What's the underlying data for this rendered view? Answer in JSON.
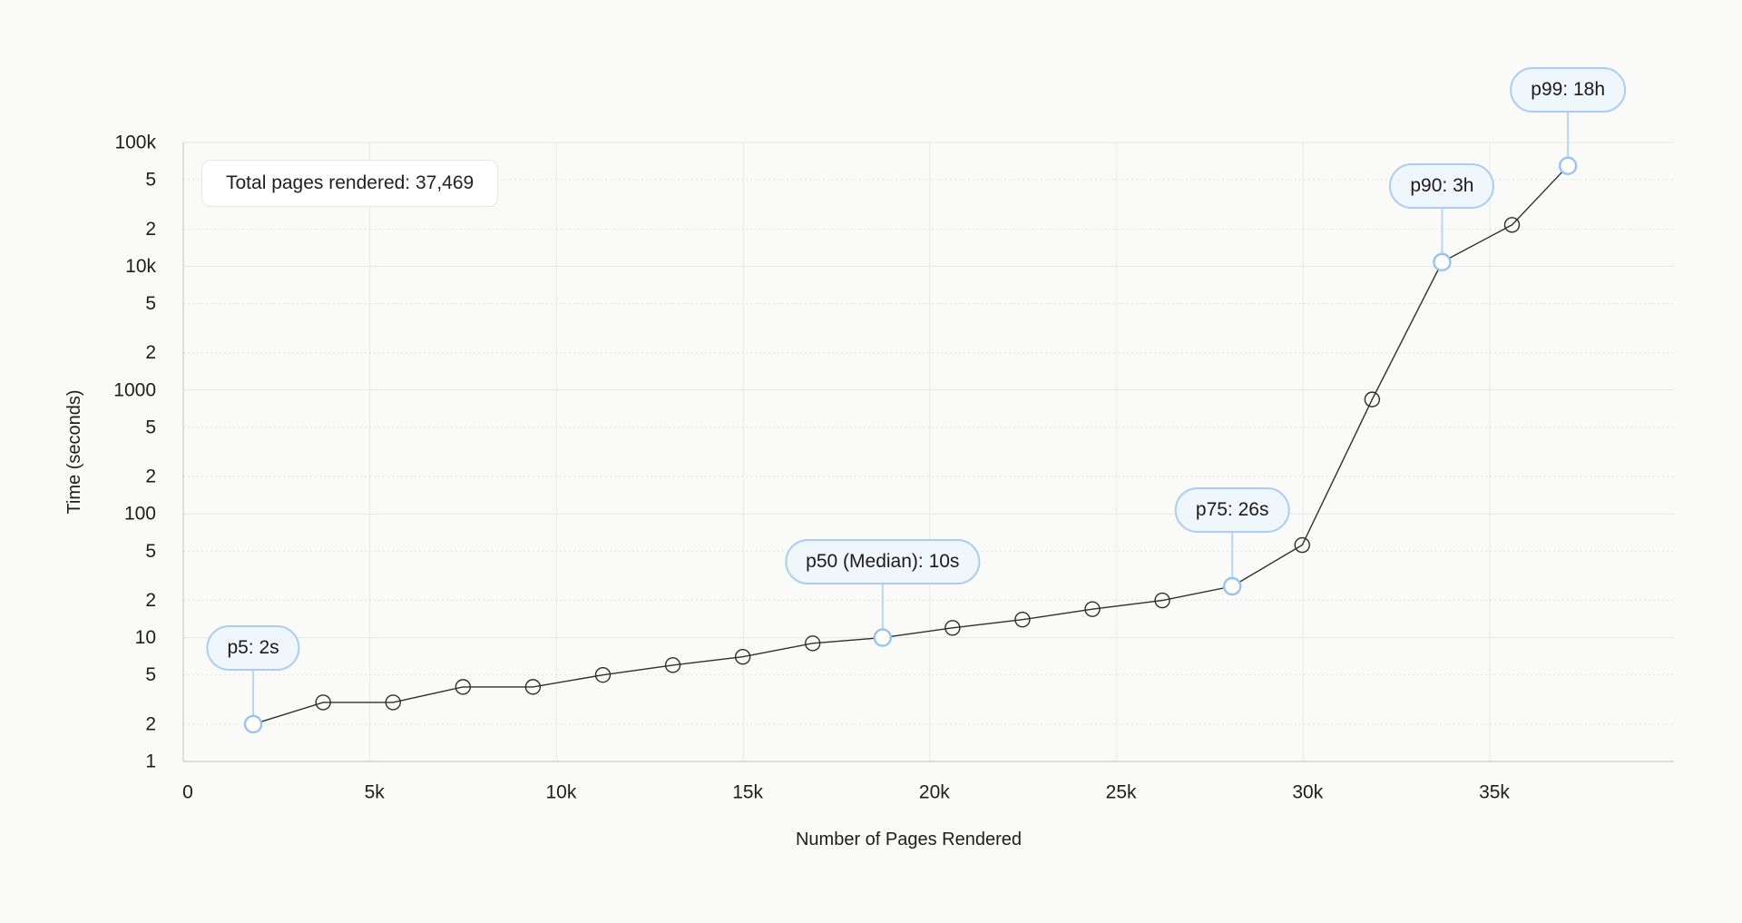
{
  "page": {
    "background": "#fafaf8"
  },
  "chart_data": {
    "type": "line",
    "total_label": "Total pages rendered: 37,469",
    "total_pages": 37469,
    "xlabel": "Number of Pages Rendered",
    "ylabel": "Time (seconds)",
    "x_axis": {
      "min": 0,
      "max": 39900,
      "tick_step": 5000,
      "ticks": [
        {
          "v": 0,
          "label": "0"
        },
        {
          "v": 5000,
          "label": "5k"
        },
        {
          "v": 10000,
          "label": "10k"
        },
        {
          "v": 15000,
          "label": "15k"
        },
        {
          "v": 20000,
          "label": "20k"
        },
        {
          "v": 25000,
          "label": "25k"
        },
        {
          "v": 30000,
          "label": "30k"
        },
        {
          "v": 35000,
          "label": "35k"
        }
      ]
    },
    "y_axis": {
      "scale": "log",
      "min": 1,
      "max": 100000,
      "ticks": [
        {
          "v": 1,
          "label": "1"
        },
        {
          "v": 2,
          "label": "2"
        },
        {
          "v": 5,
          "label": "5"
        },
        {
          "v": 10,
          "label": "10"
        },
        {
          "v": 20,
          "label": "2"
        },
        {
          "v": 50,
          "label": "5"
        },
        {
          "v": 100,
          "label": "100"
        },
        {
          "v": 200,
          "label": "2"
        },
        {
          "v": 500,
          "label": "5"
        },
        {
          "v": 1000,
          "label": "1000"
        },
        {
          "v": 2000,
          "label": "2"
        },
        {
          "v": 5000,
          "label": "5"
        },
        {
          "v": 10000,
          "label": "10k"
        },
        {
          "v": 20000,
          "label": "2"
        },
        {
          "v": 50000,
          "label": "5"
        },
        {
          "v": 100000,
          "label": "100k"
        }
      ]
    },
    "series": [
      {
        "name": "render-time-percentiles",
        "points": [
          {
            "percentile": 5,
            "pages": 1873,
            "seconds": 2
          },
          {
            "percentile": 10,
            "pages": 3747,
            "seconds": 3
          },
          {
            "percentile": 15,
            "pages": 5620,
            "seconds": 3
          },
          {
            "percentile": 20,
            "pages": 7494,
            "seconds": 4
          },
          {
            "percentile": 25,
            "pages": 9367,
            "seconds": 4
          },
          {
            "percentile": 30,
            "pages": 11241,
            "seconds": 5
          },
          {
            "percentile": 35,
            "pages": 13114,
            "seconds": 6
          },
          {
            "percentile": 40,
            "pages": 14988,
            "seconds": 7
          },
          {
            "percentile": 45,
            "pages": 16861,
            "seconds": 9
          },
          {
            "percentile": 50,
            "pages": 18735,
            "seconds": 10
          },
          {
            "percentile": 55,
            "pages": 20608,
            "seconds": 12
          },
          {
            "percentile": 60,
            "pages": 22481,
            "seconds": 14
          },
          {
            "percentile": 65,
            "pages": 24355,
            "seconds": 17
          },
          {
            "percentile": 70,
            "pages": 26228,
            "seconds": 20
          },
          {
            "percentile": 75,
            "pages": 28102,
            "seconds": 26
          },
          {
            "percentile": 80,
            "pages": 29975,
            "seconds": 56
          },
          {
            "percentile": 85,
            "pages": 31849,
            "seconds": 840
          },
          {
            "percentile": 90,
            "pages": 33722,
            "seconds": 10800
          },
          {
            "percentile": 95,
            "pages": 35596,
            "seconds": 21600
          },
          {
            "percentile": 99,
            "pages": 37094,
            "seconds": 64800
          }
        ]
      }
    ],
    "annotations": [
      {
        "percentile": 5,
        "label": "p5: 2s"
      },
      {
        "percentile": 50,
        "label": "p50 (Median): 10s"
      },
      {
        "percentile": 75,
        "label": "p75: 26s"
      },
      {
        "percentile": 90,
        "label": "p90: 3h"
      },
      {
        "percentile": 99,
        "label": "p99: 18h"
      }
    ],
    "legend": null,
    "grid": "on",
    "colors": {
      "line": "#2e2e2e",
      "marker_stroke": "#2e2e2e",
      "highlight_stroke": "#9ac3ec",
      "connector": "#b8d5f2",
      "annotation_border": "#aacdf0",
      "annotation_bg": "#eff6fc",
      "annotation_text": "#1b1b1b",
      "grid_major": "#e8e8e5",
      "grid_minor": "#dfdfdc",
      "axis_line": "#cbcbc8",
      "tick_text": "#1d1d1d",
      "box_bg": "#ffffff",
      "box_border": "#e7e7e4"
    }
  }
}
